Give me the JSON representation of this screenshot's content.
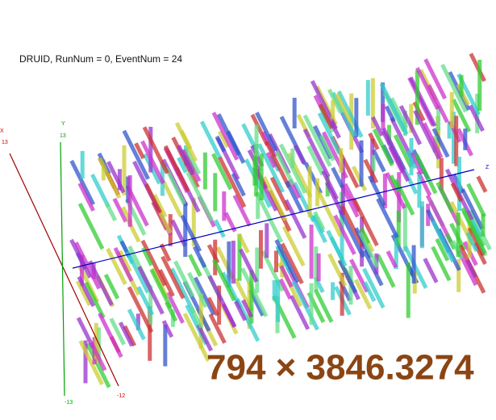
{
  "title": "DRUID, RunNum = 0, EventNum = 24",
  "axes": {
    "x": {
      "label": "X",
      "max": "13",
      "min": "-12"
    },
    "y": {
      "label": "Y",
      "max": "13",
      "min": "-13"
    },
    "z": {
      "label": "Z"
    }
  },
  "overlay": "794 × 3846.3274"
}
